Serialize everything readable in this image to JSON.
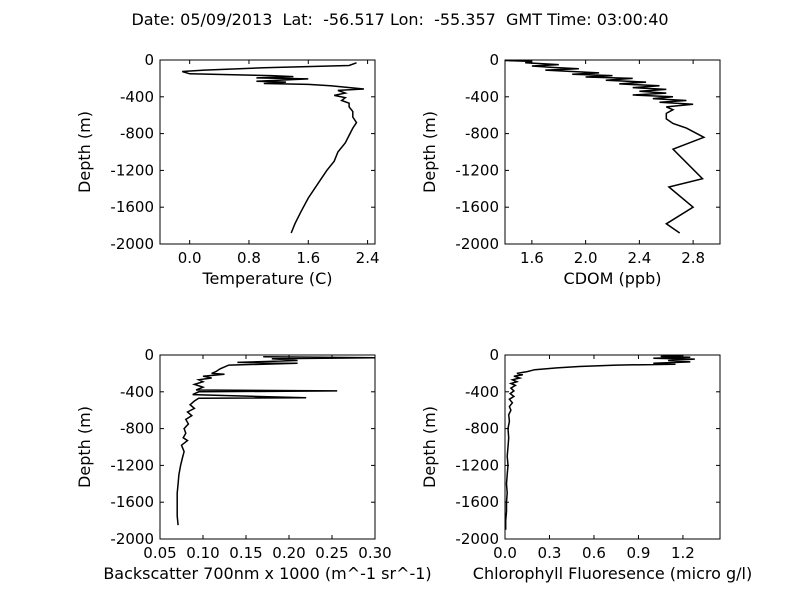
{
  "figure": {
    "title": "Date: 05/09/2013  Lat:  -56.517 Lon:  -55.357  GMT Time: 03:00:40"
  },
  "chart_data": [
    {
      "type": "line",
      "xlabel": "Temperature (C)",
      "ylabel": "Depth (m)",
      "xlim": [
        -0.4,
        2.5
      ],
      "ylim": [
        -2000,
        0
      ],
      "xticks": [
        "0.0",
        "0.8",
        "1.6",
        "2.4"
      ],
      "xtick_values": [
        0.0,
        0.8,
        1.6,
        2.4
      ],
      "yticks": [
        "0",
        "-400",
        "-800",
        "-1200",
        "-1600",
        "-2000"
      ],
      "ytick_values": [
        0,
        -400,
        -800,
        -1200,
        -1600,
        -2000
      ],
      "grid": false,
      "series": [
        {
          "color": "#000000",
          "points": [
            [
              2.25,
              -30
            ],
            [
              2.15,
              -60
            ],
            [
              1.0,
              -85
            ],
            [
              0.2,
              -110
            ],
            [
              -0.1,
              -125
            ],
            [
              0.0,
              -150
            ],
            [
              1.1,
              -170
            ],
            [
              1.4,
              -180
            ],
            [
              0.9,
              -195
            ],
            [
              1.6,
              -205
            ],
            [
              0.9,
              -230
            ],
            [
              1.3,
              -240
            ],
            [
              1.0,
              -255
            ],
            [
              1.6,
              -265
            ],
            [
              1.9,
              -280
            ],
            [
              2.35,
              -315
            ],
            [
              2.0,
              -330
            ],
            [
              2.1,
              -360
            ],
            [
              1.95,
              -385
            ],
            [
              2.1,
              -410
            ],
            [
              2.05,
              -440
            ],
            [
              2.15,
              -470
            ],
            [
              2.15,
              -510
            ],
            [
              2.2,
              -560
            ],
            [
              2.2,
              -620
            ],
            [
              2.25,
              -680
            ],
            [
              2.2,
              -740
            ],
            [
              2.15,
              -820
            ],
            [
              2.1,
              -900
            ],
            [
              2.0,
              -1000
            ],
            [
              1.95,
              -1100
            ],
            [
              1.85,
              -1200
            ],
            [
              1.75,
              -1320
            ],
            [
              1.6,
              -1500
            ],
            [
              1.5,
              -1650
            ],
            [
              1.42,
              -1780
            ],
            [
              1.37,
              -1880
            ]
          ]
        }
      ]
    },
    {
      "type": "line",
      "xlabel": "CDOM (ppb)",
      "ylabel": "Depth (m)",
      "xlim": [
        1.4,
        3.0
      ],
      "ylim": [
        -2000,
        0
      ],
      "xticks": [
        "1.6",
        "2.0",
        "2.4",
        "2.8"
      ],
      "xtick_values": [
        1.6,
        2.0,
        2.4,
        2.8
      ],
      "yticks": [
        "0",
        "-400",
        "-800",
        "-1200",
        "-1600",
        "-2000"
      ],
      "ytick_values": [
        0,
        -400,
        -800,
        -1200,
        -1600,
        -2000
      ],
      "grid": false,
      "series": [
        {
          "color": "#000000",
          "points": [
            [
              1.4,
              -5
            ],
            [
              1.6,
              -15
            ],
            [
              1.55,
              -30
            ],
            [
              1.8,
              -50
            ],
            [
              1.6,
              -65
            ],
            [
              1.75,
              -80
            ],
            [
              1.95,
              -95
            ],
            [
              1.7,
              -110
            ],
            [
              1.9,
              -125
            ],
            [
              2.1,
              -140
            ],
            [
              1.9,
              -155
            ],
            [
              2.2,
              -170
            ],
            [
              2.0,
              -185
            ],
            [
              2.35,
              -200
            ],
            [
              2.15,
              -220
            ],
            [
              2.45,
              -240
            ],
            [
              2.25,
              -260
            ],
            [
              2.55,
              -280
            ],
            [
              2.35,
              -300
            ],
            [
              2.6,
              -320
            ],
            [
              2.4,
              -340
            ],
            [
              2.6,
              -360
            ],
            [
              2.35,
              -380
            ],
            [
              2.65,
              -400
            ],
            [
              2.5,
              -420
            ],
            [
              2.75,
              -440
            ],
            [
              2.55,
              -460
            ],
            [
              2.8,
              -480
            ],
            [
              2.6,
              -510
            ],
            [
              2.65,
              -540
            ],
            [
              2.6,
              -580
            ],
            [
              2.6,
              -640
            ],
            [
              2.65,
              -690
            ],
            [
              2.75,
              -740
            ],
            [
              2.88,
              -840
            ],
            [
              2.65,
              -970
            ],
            [
              2.87,
              -1290
            ],
            [
              2.62,
              -1380
            ],
            [
              2.8,
              -1600
            ],
            [
              2.6,
              -1780
            ],
            [
              2.7,
              -1880
            ]
          ]
        }
      ]
    },
    {
      "type": "line",
      "xlabel": "Backscatter 700nm x 1000 (m^-1 sr^-1)",
      "ylabel": "Depth (m)",
      "xlim": [
        0.05,
        0.3
      ],
      "ylim": [
        -2000,
        0
      ],
      "xticks": [
        "0.05",
        "0.10",
        "0.15",
        "0.20",
        "0.25",
        "0.30"
      ],
      "xtick_values": [
        0.05,
        0.1,
        0.15,
        0.2,
        0.25,
        0.3
      ],
      "yticks": [
        "0",
        "-400",
        "-800",
        "-1200",
        "-1600",
        "-2000"
      ],
      "ytick_values": [
        0,
        -400,
        -800,
        -1200,
        -1600,
        -2000
      ],
      "grid": false,
      "series": [
        {
          "color": "#000000",
          "points": [
            [
              0.17,
              -20
            ],
            [
              0.3,
              -30
            ],
            [
              0.18,
              -40
            ],
            [
              0.21,
              -60
            ],
            [
              0.14,
              -80
            ],
            [
              0.21,
              -90
            ],
            [
              0.13,
              -110
            ],
            [
              0.12,
              -150
            ],
            [
              0.115,
              -180
            ],
            [
              0.11,
              -200
            ],
            [
              0.125,
              -210
            ],
            [
              0.1,
              -230
            ],
            [
              0.11,
              -250
            ],
            [
              0.095,
              -270
            ],
            [
              0.1,
              -290
            ],
            [
              0.09,
              -320
            ],
            [
              0.1,
              -350
            ],
            [
              0.092,
              -380
            ],
            [
              0.256,
              -390
            ],
            [
              0.095,
              -400
            ],
            [
              0.088,
              -430
            ],
            [
              0.22,
              -465
            ],
            [
              0.095,
              -470
            ],
            [
              0.09,
              -500
            ],
            [
              0.085,
              -540
            ],
            [
              0.09,
              -580
            ],
            [
              0.082,
              -620
            ],
            [
              0.087,
              -660
            ],
            [
              0.08,
              -700
            ],
            [
              0.083,
              -750
            ],
            [
              0.078,
              -800
            ],
            [
              0.08,
              -850
            ],
            [
              0.077,
              -900
            ],
            [
              0.082,
              -930
            ],
            [
              0.075,
              -980
            ],
            [
              0.078,
              -1050
            ],
            [
              0.076,
              -1120
            ],
            [
              0.074,
              -1200
            ],
            [
              0.072,
              -1300
            ],
            [
              0.071,
              -1400
            ],
            [
              0.07,
              -1500
            ],
            [
              0.07,
              -1650
            ],
            [
              0.07,
              -1750
            ],
            [
              0.071,
              -1850
            ]
          ]
        }
      ]
    },
    {
      "type": "line",
      "xlabel": "Chlorophyll Fluoresence (micro g/l)",
      "ylabel": "Depth (m)",
      "xlim": [
        0.0,
        1.45
      ],
      "ylim": [
        -2000,
        0
      ],
      "xticks": [
        "0.0",
        "0.3",
        "0.6",
        "0.9",
        "1.2"
      ],
      "xtick_values": [
        0.0,
        0.3,
        0.6,
        0.9,
        1.2
      ],
      "yticks": [
        "0",
        "-400",
        "-800",
        "-1200",
        "-1600",
        "-2000"
      ],
      "ytick_values": [
        0,
        -400,
        -800,
        -1200,
        -1600,
        -2000
      ],
      "grid": false,
      "series": [
        {
          "color": "#000000",
          "points": [
            [
              1.2,
              -5
            ],
            [
              1.05,
              -15
            ],
            [
              1.25,
              -25
            ],
            [
              1.0,
              -35
            ],
            [
              1.28,
              -45
            ],
            [
              1.1,
              -60
            ],
            [
              1.25,
              -75
            ],
            [
              1.0,
              -90
            ],
            [
              1.15,
              -100
            ],
            [
              0.75,
              -110
            ],
            [
              0.5,
              -125
            ],
            [
              0.35,
              -140
            ],
            [
              0.2,
              -160
            ],
            [
              0.15,
              -180
            ],
            [
              0.08,
              -200
            ],
            [
              0.12,
              -215
            ],
            [
              0.06,
              -230
            ],
            [
              0.1,
              -250
            ],
            [
              0.05,
              -270
            ],
            [
              0.08,
              -290
            ],
            [
              0.04,
              -310
            ],
            [
              0.07,
              -330
            ],
            [
              0.04,
              -360
            ],
            [
              0.06,
              -390
            ],
            [
              0.035,
              -420
            ],
            [
              0.06,
              -450
            ],
            [
              0.03,
              -480
            ],
            [
              0.05,
              -520
            ],
            [
              0.03,
              -560
            ],
            [
              0.04,
              -600
            ],
            [
              0.025,
              -650
            ],
            [
              0.03,
              -720
            ],
            [
              0.02,
              -800
            ],
            [
              0.025,
              -900
            ],
            [
              0.02,
              -1000
            ],
            [
              0.015,
              -1100
            ],
            [
              0.02,
              -1200
            ],
            [
              0.015,
              -1300
            ],
            [
              0.01,
              -1400
            ],
            [
              0.015,
              -1500
            ],
            [
              0.01,
              -1600
            ],
            [
              0.01,
              -1700
            ],
            [
              0.005,
              -1800
            ],
            [
              0.005,
              -1900
            ]
          ]
        }
      ]
    }
  ]
}
